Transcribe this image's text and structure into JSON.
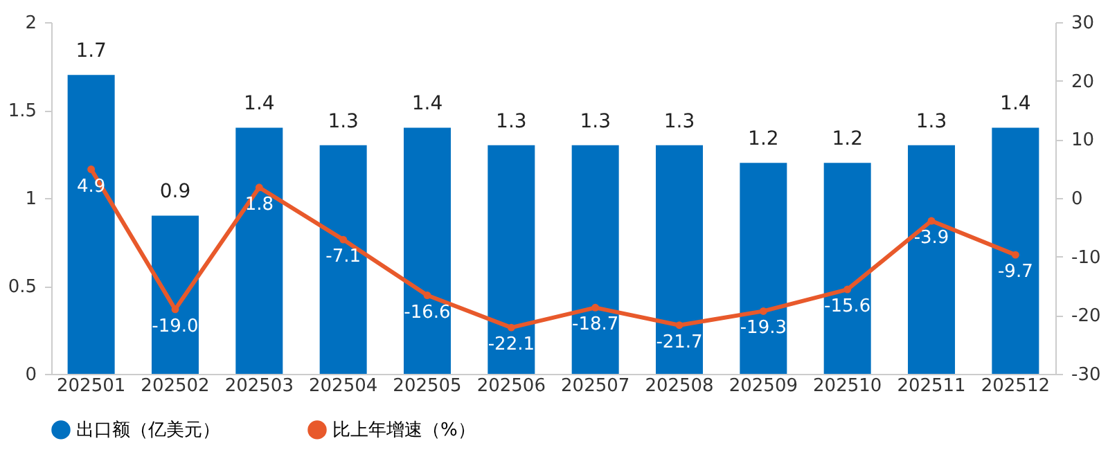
{
  "chart_data": {
    "type": "bar",
    "categories": [
      "202501",
      "202502",
      "202503",
      "202504",
      "202505",
      "202506",
      "202507",
      "202508",
      "202509",
      "202510",
      "202511",
      "202512"
    ],
    "series": [
      {
        "name": "出口额（亿美元）",
        "color": "#0070c0",
        "values": [
          1.7,
          0.9,
          1.4,
          1.3,
          1.4,
          1.3,
          1.3,
          1.3,
          1.2,
          1.2,
          1.3,
          1.4
        ],
        "value_labels": [
          "1.7",
          "0.9",
          "1.4",
          "1.3",
          "1.4",
          "1.3",
          "1.3",
          "1.3",
          "1.2",
          "1.2",
          "1.3",
          "1.4"
        ]
      },
      {
        "name": "比上年增速（%）",
        "type": "line",
        "axis": "y2",
        "color": "#e8592b",
        "values": [
          4.9,
          -19.0,
          1.8,
          -7.1,
          -16.6,
          -22.1,
          -18.7,
          -21.7,
          -19.3,
          -15.6,
          -3.9,
          -9.7
        ],
        "value_labels": [
          "4.9",
          "-19.0",
          "1.8",
          "-7.1",
          "-16.6",
          "-22.1",
          "-18.7",
          "-21.7",
          "-19.3",
          "-15.6",
          "-3.9",
          "-9.7"
        ]
      }
    ],
    "ylim": [
      0,
      2
    ],
    "yticks": [
      0,
      0.5,
      1,
      1.5,
      2
    ],
    "y2lim": [
      -30,
      30
    ],
    "y2ticks": [
      -30,
      -20,
      -10,
      0,
      10,
      20,
      30
    ],
    "grid": false,
    "legend": "bottom",
    "marker": "circle",
    "line_style": "solid"
  }
}
